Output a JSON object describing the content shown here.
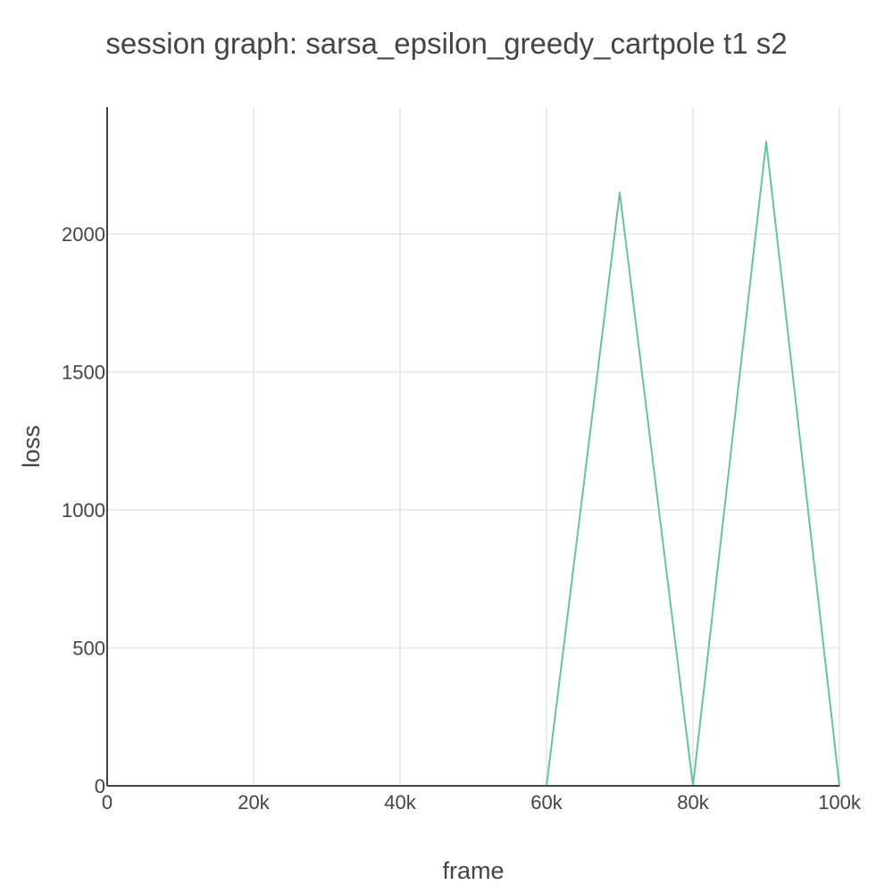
{
  "chart_data": {
    "type": "line",
    "title": "session graph: sarsa_epsilon_greedy_cartpole t1 s2",
    "xlabel": "frame",
    "ylabel": "loss",
    "xlim": [
      0,
      100000
    ],
    "ylim": [
      0,
      2460
    ],
    "x_ticks": [
      {
        "value": 0,
        "label": "0"
      },
      {
        "value": 20000,
        "label": "20k"
      },
      {
        "value": 40000,
        "label": "40k"
      },
      {
        "value": 60000,
        "label": "60k"
      },
      {
        "value": 80000,
        "label": "80k"
      },
      {
        "value": 100000,
        "label": "100k"
      }
    ],
    "y_ticks": [
      {
        "value": 0,
        "label": "0"
      },
      {
        "value": 500,
        "label": "500"
      },
      {
        "value": 1000,
        "label": "1000"
      },
      {
        "value": 1500,
        "label": "1500"
      },
      {
        "value": 2000,
        "label": "2000"
      }
    ],
    "grid": true,
    "legend": "none",
    "series": [
      {
        "color": "#66c2a5",
        "x": [
          10000,
          20000,
          30000,
          40000,
          50000,
          60000,
          70000,
          80000,
          90000,
          100000
        ],
        "y": [
          0,
          0,
          0,
          0,
          0,
          0,
          2150,
          0,
          2335,
          0
        ]
      }
    ]
  }
}
